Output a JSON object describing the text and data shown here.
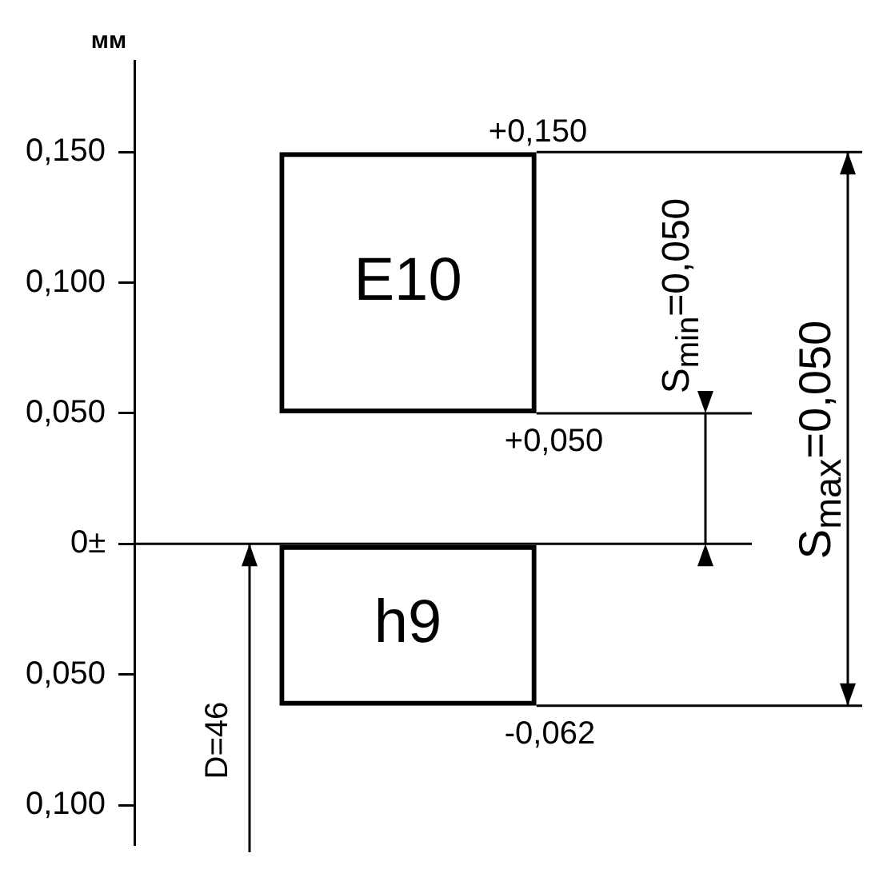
{
  "chart_data": {
    "type": "bar",
    "ylabel": "мм",
    "categories": [
      null
    ],
    "series": [
      {
        "name": "E10",
        "color": "#000000",
        "values": [
          0.1
        ],
        "base": [
          0.05
        ]
      },
      {
        "name": "h9",
        "color": "#000000",
        "values": [
          0.062
        ],
        "base": [
          -0.062
        ]
      }
    ],
    "ylim": [
      -0.115,
      0.185
    ],
    "yticks": [
      {
        "value": 0.15,
        "label": "0,150"
      },
      {
        "value": 0.1,
        "label": "0,100"
      },
      {
        "value": 0.05,
        "label": "0,050"
      },
      {
        "value": 0,
        "label": "0±"
      },
      {
        "value": -0.05,
        "label": "0,050"
      },
      {
        "value": -0.1,
        "label": "0,100"
      }
    ],
    "ref_lines": [
      {
        "axis": "y",
        "value": 0.15,
        "label": "+0,150"
      },
      {
        "axis": "y",
        "value": 0.05,
        "label": "+0,050"
      },
      {
        "axis": "y",
        "value": 0,
        "label": null
      },
      {
        "axis": "y",
        "value": -0.062,
        "label": "-0,062"
      }
    ],
    "annotations": [
      "S$_{min}$=0,050",
      "S$_{max}$=0,050",
      "D=46"
    ],
    "grid": false,
    "legend": false
  }
}
